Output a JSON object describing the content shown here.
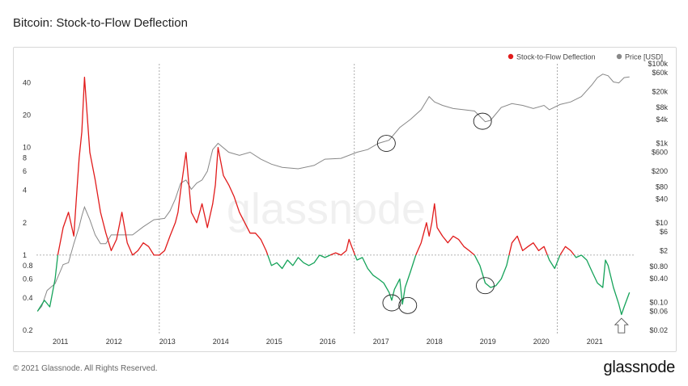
{
  "header": {
    "title": "Bitcoin: Stock-to-Flow Deflection"
  },
  "footer": {
    "copyright": "© 2021 Glassnode. All Rights Reserved.",
    "brand": "glassnode"
  },
  "watermark": "glassnode",
  "chart_data": {
    "type": "line",
    "title": "Bitcoin: Stock-to-Flow Deflection",
    "legend": [
      {
        "label": "Stock-to-Flow Deflection",
        "color": "#e11b1b"
      },
      {
        "label": "Price [USD]",
        "color": "#888888"
      }
    ],
    "legend_position": "top-right",
    "x_range": [
      2010.6,
      2021.75
    ],
    "x_ticks": [
      "2011",
      "2012",
      "2013",
      "2014",
      "2015",
      "2016",
      "2017",
      "2018",
      "2019",
      "2020",
      "2021"
    ],
    "left_axis": {
      "scale": "log",
      "ylim": [
        0.2,
        60
      ],
      "ticks": [
        0.2,
        0.4,
        0.6,
        0.8,
        1,
        2,
        4,
        6,
        8,
        10,
        20,
        40
      ]
    },
    "right_axis": {
      "scale": "log",
      "ylim": [
        0.02,
        100000
      ],
      "ticks": [
        "$0.02",
        "$0.06",
        "$0.10",
        "$0.40",
        "$0.80",
        "$2",
        "$6",
        "$10",
        "$40",
        "$80",
        "$200",
        "$600",
        "$1k",
        "$4k",
        "$8k",
        "$20k",
        "$60k",
        "$100k"
      ]
    },
    "reference_line": 1,
    "vertical_markers": [
      2012.9,
      2016.55,
      2020.35
    ],
    "colors": {
      "above_one": "#e11b1b",
      "below_one": "#16a35a",
      "price": "#888888"
    },
    "series": [
      {
        "name": "Stock-to-Flow Deflection",
        "axis": "left",
        "x": [
          2010.62,
          2010.75,
          2010.85,
          2010.95,
          2011.0,
          2011.1,
          2011.2,
          2011.3,
          2011.35,
          2011.4,
          2011.45,
          2011.5,
          2011.55,
          2011.6,
          2011.7,
          2011.8,
          2011.9,
          2012.0,
          2012.1,
          2012.2,
          2012.3,
          2012.4,
          2012.5,
          2012.6,
          2012.7,
          2012.8,
          2012.9,
          2013.0,
          2013.1,
          2013.2,
          2013.25,
          2013.3,
          2013.4,
          2013.5,
          2013.6,
          2013.7,
          2013.8,
          2013.9,
          2013.95,
          2014.0,
          2014.1,
          2014.2,
          2014.3,
          2014.4,
          2014.5,
          2014.6,
          2014.7,
          2014.8,
          2014.9,
          2015.0,
          2015.1,
          2015.2,
          2015.3,
          2015.4,
          2015.5,
          2015.6,
          2015.7,
          2015.8,
          2015.9,
          2016.0,
          2016.1,
          2016.2,
          2016.3,
          2016.4,
          2016.45,
          2016.5,
          2016.6,
          2016.7,
          2016.8,
          2016.9,
          2017.0,
          2017.1,
          2017.2,
          2017.25,
          2017.3,
          2017.4,
          2017.45,
          2017.5,
          2017.6,
          2017.7,
          2017.8,
          2017.9,
          2017.95,
          2018.0,
          2018.05,
          2018.1,
          2018.2,
          2018.3,
          2018.4,
          2018.5,
          2018.6,
          2018.7,
          2018.8,
          2018.9,
          2019.0,
          2019.1,
          2019.2,
          2019.3,
          2019.4,
          2019.5,
          2019.6,
          2019.7,
          2019.8,
          2019.9,
          2020.0,
          2020.1,
          2020.2,
          2020.3,
          2020.4,
          2020.5,
          2020.6,
          2020.7,
          2020.8,
          2020.9,
          2021.0,
          2021.1,
          2021.2,
          2021.25,
          2021.3,
          2021.4,
          2021.5,
          2021.55,
          2021.6,
          2021.7
        ],
        "y": [
          0.3,
          0.38,
          0.33,
          0.6,
          1.0,
          1.8,
          2.5,
          1.5,
          3.5,
          8,
          14,
          45,
          20,
          9,
          5,
          2.5,
          1.6,
          1.1,
          1.4,
          2.5,
          1.3,
          1.0,
          1.1,
          1.3,
          1.2,
          1.0,
          1.0,
          1.1,
          1.5,
          2.0,
          2.5,
          4.0,
          9.0,
          2.5,
          2.0,
          3.0,
          1.8,
          3.0,
          4.5,
          10.0,
          5.5,
          4.5,
          3.5,
          2.5,
          2.0,
          1.6,
          1.6,
          1.4,
          1.1,
          0.8,
          0.85,
          0.75,
          0.9,
          0.8,
          0.95,
          0.85,
          0.8,
          0.85,
          1.0,
          0.95,
          1.0,
          1.05,
          1.0,
          1.1,
          1.4,
          1.2,
          0.9,
          0.95,
          0.75,
          0.65,
          0.6,
          0.55,
          0.45,
          0.38,
          0.48,
          0.6,
          0.35,
          0.5,
          0.7,
          1.0,
          1.3,
          2.0,
          1.5,
          2.0,
          3.0,
          1.8,
          1.5,
          1.3,
          1.5,
          1.4,
          1.2,
          1.1,
          1.0,
          0.8,
          0.55,
          0.5,
          0.52,
          0.6,
          0.8,
          1.3,
          1.5,
          1.1,
          1.2,
          1.3,
          1.1,
          1.2,
          0.9,
          0.75,
          1.0,
          1.2,
          1.1,
          0.95,
          1.0,
          0.9,
          0.7,
          0.55,
          0.5,
          0.9,
          0.8,
          0.5,
          0.35,
          0.28,
          0.33,
          0.45
        ]
      },
      {
        "name": "Price [USD]",
        "axis": "right",
        "x": [
          2010.62,
          2010.7,
          2010.8,
          2010.95,
          2011.1,
          2011.2,
          2011.3,
          2011.4,
          2011.45,
          2011.5,
          2011.6,
          2011.7,
          2011.8,
          2011.9,
          2012.0,
          2012.2,
          2012.4,
          2012.6,
          2012.8,
          2013.0,
          2013.1,
          2013.2,
          2013.3,
          2013.4,
          2013.5,
          2013.6,
          2013.7,
          2013.8,
          2013.9,
          2014.0,
          2014.2,
          2014.4,
          2014.6,
          2014.8,
          2015.0,
          2015.2,
          2015.5,
          2015.8,
          2016.0,
          2016.3,
          2016.6,
          2016.8,
          2017.0,
          2017.2,
          2017.4,
          2017.6,
          2017.8,
          2017.95,
          2018.05,
          2018.2,
          2018.4,
          2018.6,
          2018.8,
          2019.0,
          2019.1,
          2019.3,
          2019.5,
          2019.7,
          2019.9,
          2020.1,
          2020.2,
          2020.4,
          2020.6,
          2020.8,
          2021.0,
          2021.1,
          2021.2,
          2021.3,
          2021.4,
          2021.5,
          2021.6,
          2021.7
        ],
        "y": [
          0.06,
          0.08,
          0.2,
          0.3,
          0.9,
          1,
          3,
          8,
          15,
          25,
          12,
          5,
          3,
          3,
          5,
          5,
          5,
          8,
          12,
          13,
          20,
          40,
          100,
          120,
          70,
          100,
          120,
          200,
          700,
          1000,
          600,
          500,
          600,
          400,
          300,
          250,
          230,
          280,
          400,
          420,
          600,
          700,
          1000,
          1200,
          2500,
          4000,
          7000,
          15000,
          11000,
          9000,
          7500,
          7000,
          6500,
          3500,
          3800,
          8000,
          10000,
          9000,
          7500,
          9000,
          7000,
          9500,
          11000,
          15000,
          30000,
          45000,
          55000,
          50000,
          35000,
          33000,
          45000,
          47000
        ]
      }
    ],
    "annotations": [
      {
        "label": "circle",
        "x": 2017.25,
        "y": 0.36
      },
      {
        "label": "circle",
        "x": 2017.55,
        "y": 0.34
      },
      {
        "label": "circle",
        "x": 2019.0,
        "y": 0.52
      },
      {
        "label": "circle",
        "x": 2017.15,
        "price": 1000
      },
      {
        "label": "circle",
        "x": 2018.95,
        "price": 3600
      },
      {
        "label": "arrow",
        "x": 2021.55,
        "y": 0.21
      }
    ]
  }
}
